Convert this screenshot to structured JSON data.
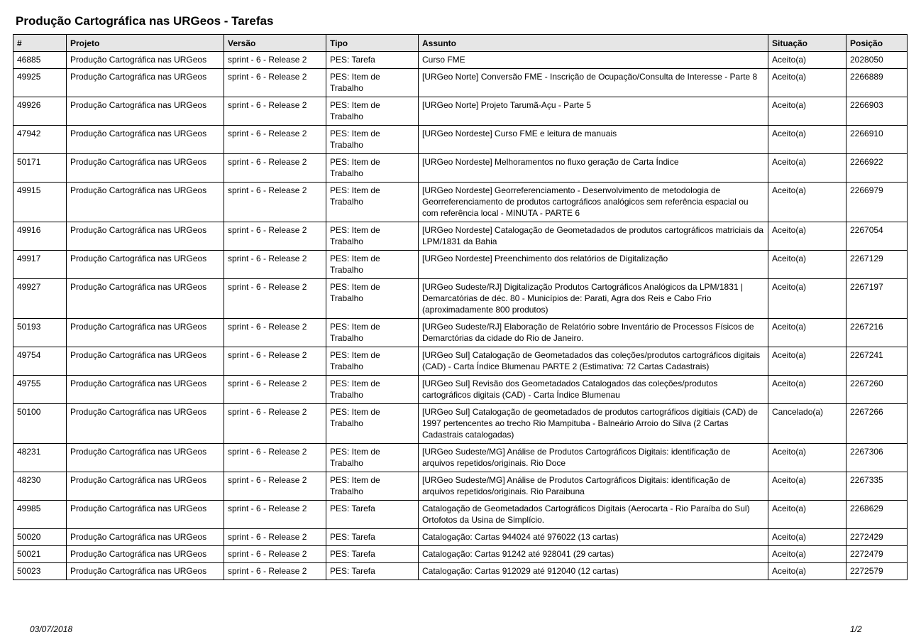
{
  "title": "Produção Cartográfica nas URGeos - Tarefas",
  "columns": [
    "#",
    "Projeto",
    "Versão",
    "Tipo",
    "Assunto",
    "Situação",
    "Posição"
  ],
  "rows": [
    {
      "id": "46885",
      "projeto": "Produção Cartográfica nas URGeos",
      "versao": "sprint - 6 - Release 2",
      "tipo": "PES: Tarefa",
      "assunto": "Curso FME",
      "situacao": "Aceito(a)",
      "posicao": "2028050"
    },
    {
      "id": "49925",
      "projeto": "Produção Cartográfica nas URGeos",
      "versao": "sprint - 6 - Release 2",
      "tipo": "PES: Item de Trabalho",
      "assunto": "[URGeo Norte] Conversão FME -  Inscrição de Ocupação/Consulta de Interesse - Parte 8",
      "situacao": "Aceito(a)",
      "posicao": "2266889"
    },
    {
      "id": "49926",
      "projeto": "Produção Cartográfica nas URGeos",
      "versao": "sprint - 6 - Release 2",
      "tipo": "PES: Item de Trabalho",
      "assunto": "[URGeo Norte] Projeto Tarumã-Açu - Parte 5",
      "situacao": "Aceito(a)",
      "posicao": "2266903"
    },
    {
      "id": "47942",
      "projeto": "Produção Cartográfica nas URGeos",
      "versao": "sprint - 6 - Release 2",
      "tipo": "PES: Item de Trabalho",
      "assunto": "[URGeo Nordeste] Curso FME e leitura de manuais",
      "situacao": "Aceito(a)",
      "posicao": "2266910"
    },
    {
      "id": "50171",
      "projeto": "Produção Cartográfica nas URGeos",
      "versao": "sprint - 6 - Release 2",
      "tipo": "PES: Item de Trabalho",
      "assunto": "[URGeo Nordeste] Melhoramentos no fluxo geração de Carta Índice",
      "situacao": "Aceito(a)",
      "posicao": "2266922"
    },
    {
      "id": "49915",
      "projeto": "Produção Cartográfica nas URGeos",
      "versao": "sprint - 6 - Release 2",
      "tipo": "PES: Item de Trabalho",
      "assunto": "[URGeo Nordeste] Georreferenciamento - Desenvolvimento de metodologia de Georreferenciamento de produtos cartográficos analógicos sem referência espacial ou com referência local - MINUTA - PARTE 6",
      "situacao": "Aceito(a)",
      "posicao": "2266979"
    },
    {
      "id": "49916",
      "projeto": "Produção Cartográfica nas URGeos",
      "versao": "sprint - 6 - Release 2",
      "tipo": "PES: Item de Trabalho",
      "assunto": "[URGeo Nordeste] Catalogação de Geometadados de produtos cartográficos matriciais da LPM/1831 da Bahia",
      "situacao": "Aceito(a)",
      "posicao": "2267054"
    },
    {
      "id": "49917",
      "projeto": "Produção Cartográfica nas URGeos",
      "versao": "sprint - 6 - Release 2",
      "tipo": "PES: Item de Trabalho",
      "assunto": "[URGeo Nordeste] Preenchimento dos relatórios de Digitalização",
      "situacao": "Aceito(a)",
      "posicao": "2267129"
    },
    {
      "id": "49927",
      "projeto": "Produção Cartográfica nas URGeos",
      "versao": "sprint - 6 - Release 2",
      "tipo": "PES: Item de Trabalho",
      "assunto": "[URGeo Sudeste/RJ] Digitalização Produtos Cartográficos Analógicos da LPM/1831 | Demarcatórias de déc. 80 - Municípios de: Parati, Agra dos Reis e Cabo Frio (aproximadamente 800 produtos)",
      "situacao": "Aceito(a)",
      "posicao": "2267197"
    },
    {
      "id": "50193",
      "projeto": "Produção Cartográfica nas URGeos",
      "versao": "sprint - 6 - Release 2",
      "tipo": "PES: Item de Trabalho",
      "assunto": "[URGeo Sudeste/RJ] Elaboração de Relatório sobre Inventário de Processos Físicos de Demarctórias da cidade do Rio de Janeiro.",
      "situacao": "Aceito(a)",
      "posicao": "2267216"
    },
    {
      "id": "49754",
      "projeto": "Produção Cartográfica nas URGeos",
      "versao": "sprint - 6 - Release 2",
      "tipo": "PES: Item de Trabalho",
      "assunto": "[URGeo Sul] Catalogação de Geometadados das coleções/produtos cartográficos digitais (CAD) - Carta Índice Blumenau PARTE 2 (Estimativa: 72 Cartas Cadastrais)",
      "situacao": "Aceito(a)",
      "posicao": "2267241"
    },
    {
      "id": "49755",
      "projeto": "Produção Cartográfica nas URGeos",
      "versao": "sprint - 6 - Release 2",
      "tipo": "PES: Item de Trabalho",
      "assunto": "[URGeo Sul] Revisão dos Geometadados Catalogados das coleções/produtos cartográficos digitais (CAD) - Carta Índice Blumenau",
      "situacao": "Aceito(a)",
      "posicao": "2267260"
    },
    {
      "id": "50100",
      "projeto": "Produção Cartográfica nas URGeos",
      "versao": "sprint - 6 - Release 2",
      "tipo": "PES: Item de Trabalho",
      "assunto": "[URGeo Sul] Catalogação de geometadados de produtos cartográficos digitiais (CAD) de 1997 pertencentes ao trecho Rio Mampituba - Balneário Arroio do Silva (2 Cartas Cadastrais catalogadas)",
      "situacao": "Cancelado(a)",
      "posicao": "2267266"
    },
    {
      "id": "48231",
      "projeto": "Produção Cartográfica nas URGeos",
      "versao": "sprint - 6 - Release 2",
      "tipo": "PES: Item de Trabalho",
      "assunto": "[URGeo Sudeste/MG] Análise de Produtos Cartográficos Digitais: identificação de arquivos repetidos/originais. Rio Doce",
      "situacao": "Aceito(a)",
      "posicao": "2267306"
    },
    {
      "id": "48230",
      "projeto": "Produção Cartográfica nas URGeos",
      "versao": "sprint - 6 - Release 2",
      "tipo": "PES: Item de Trabalho",
      "assunto": "[URGeo Sudeste/MG] Análise de Produtos Cartográficos Digitais: identificação de arquivos repetidos/originais. Rio Paraibuna",
      "situacao": "Aceito(a)",
      "posicao": "2267335"
    },
    {
      "id": "49985",
      "projeto": "Produção Cartográfica nas URGeos",
      "versao": "sprint - 6 - Release 2",
      "tipo": "PES: Tarefa",
      "assunto": "Catalogação de Geometadados Cartográficos  Digitais (Aerocarta - Rio Paraíba do Sul)\nOrtofotos da Usina de Simplício.",
      "situacao": "Aceito(a)",
      "posicao": "2268629"
    },
    {
      "id": "50020",
      "projeto": "Produção Cartográfica nas URGeos",
      "versao": "sprint - 6 - Release 2",
      "tipo": "PES: Tarefa",
      "assunto": "Catalogação: Cartas 944024 até 976022 (13 cartas)",
      "situacao": "Aceito(a)",
      "posicao": "2272429"
    },
    {
      "id": "50021",
      "projeto": "Produção Cartográfica nas URGeos",
      "versao": "sprint - 6 - Release 2",
      "tipo": "PES: Tarefa",
      "assunto": "Catalogação: Cartas 91242 até 928041 (29 cartas)",
      "situacao": "Aceito(a)",
      "posicao": "2272479"
    },
    {
      "id": "50023",
      "projeto": "Produção Cartográfica nas URGeos",
      "versao": "sprint - 6 - Release 2",
      "tipo": "PES: Tarefa",
      "assunto": "Catalogação: Cartas 912029 até 912040 (12 cartas)",
      "situacao": "Aceito(a)",
      "posicao": "2272579"
    }
  ],
  "footer": {
    "date": "03/07/2018",
    "page": "1/2"
  }
}
